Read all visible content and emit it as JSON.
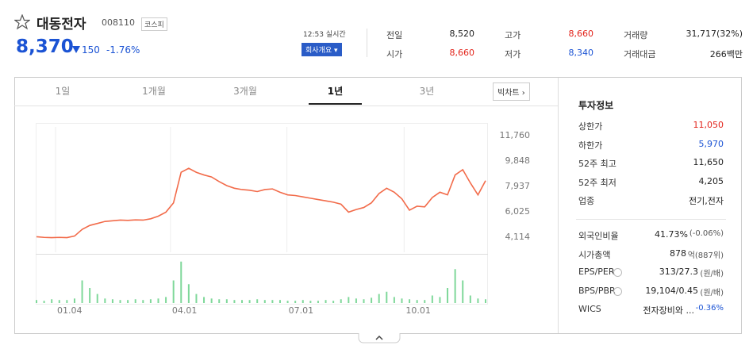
{
  "header": {
    "name": "대동전자",
    "code": "008110",
    "market": "코스피",
    "price": "8,370",
    "change": "150",
    "change_rate": "-1.76%",
    "time": "12:53 실시간",
    "company_button": "회사개요"
  },
  "summary": [
    {
      "label": "전일",
      "value": "8,520"
    },
    {
      "label": "고가",
      "value": "8,660",
      "color": "#e2231a"
    },
    {
      "label": "거래량",
      "value": "31,717(32%)"
    },
    {
      "label": "시가",
      "value": "8,660",
      "color": "#e2231a"
    },
    {
      "label": "저가",
      "value": "8,340",
      "color": "#1b53d4"
    },
    {
      "label": "거래대금",
      "value": "266백만"
    }
  ],
  "tabs": [
    "1일",
    "1개월",
    "3개월",
    "1년",
    "3년"
  ],
  "big_chart": "빅차트",
  "chart_data": {
    "type": "line",
    "xlim": [
      0,
      59
    ],
    "xticks": [
      {
        "value": 2.5,
        "label": "01.04"
      },
      {
        "value": 17.6,
        "label": "04.01"
      },
      {
        "value": 32.9,
        "label": "07.01"
      },
      {
        "value": 48.3,
        "label": "10.01"
      }
    ],
    "ylim": [
      3159,
      12716
    ],
    "yticks": [
      {
        "value": 11760,
        "label": "11,760"
      },
      {
        "value": 9848,
        "label": "9,848"
      },
      {
        "value": 7937,
        "label": "7,937"
      },
      {
        "value": 6025,
        "label": "6,025"
      },
      {
        "value": 4114,
        "label": "4,114"
      }
    ],
    "y2lim": [
      0,
      60
    ],
    "series": [
      {
        "color": "#f26b4a",
        "values": [
          4150,
          4100,
          4080,
          4100,
          4080,
          4200,
          4700,
          5000,
          5150,
          5300,
          5350,
          5400,
          5380,
          5420,
          5400,
          5500,
          5700,
          6000,
          6700,
          9000,
          9300,
          9000,
          8800,
          8650,
          8300,
          8000,
          7800,
          7700,
          7650,
          7550,
          7700,
          7750,
          7500,
          7300,
          7250,
          7150,
          7050,
          6950,
          6850,
          6750,
          6600,
          6000,
          6200,
          6350,
          6700,
          7400,
          7800,
          7500,
          7000,
          6150,
          6450,
          6400,
          7100,
          7500,
          7300,
          8800,
          9200,
          8200,
          7300,
          8370
        ]
      },
      {
        "type": "bar",
        "axis": "y2",
        "color": "#7fd89a",
        "values": [
          4,
          3,
          5,
          4,
          4,
          6,
          30,
          20,
          12,
          6,
          5,
          4,
          4,
          5,
          4,
          5,
          6,
          8,
          30,
          55,
          25,
          12,
          8,
          6,
          5,
          5,
          4,
          4,
          4,
          5,
          4,
          4,
          4,
          3,
          3,
          4,
          3,
          3,
          4,
          3,
          5,
          8,
          6,
          5,
          7,
          12,
          15,
          8,
          6,
          5,
          4,
          4,
          10,
          8,
          20,
          45,
          30,
          10,
          6,
          5
        ]
      }
    ]
  },
  "invest": {
    "title": "투자정보",
    "group1": [
      {
        "label": "상한가",
        "value": "11,050",
        "color": "#e2231a"
      },
      {
        "label": "하한가",
        "value": "5,970",
        "color": "#1b53d4"
      },
      {
        "label": "52주 최고",
        "value": "11,650"
      },
      {
        "label": "52주 최저",
        "value": "4,205"
      },
      {
        "label": "업종",
        "value": "전기,전자"
      }
    ],
    "group2": [
      {
        "label": "외국인비율",
        "value": "41.73%",
        "extra": "(-0.06%)"
      },
      {
        "label": "시가총액",
        "value": "878",
        "extra": "억(887위)"
      },
      {
        "label": "EPS/PER",
        "value": "313/27.3",
        "extra": "(원/배)",
        "help": true
      },
      {
        "label": "BPS/PBR",
        "value": "19,104/0.45",
        "extra": "(원/배)",
        "help": true
      },
      {
        "label": "WICS",
        "value": "전자장비와 ...",
        "extra": "-0.36%",
        "extra_color": "#1b53d4"
      }
    ]
  }
}
